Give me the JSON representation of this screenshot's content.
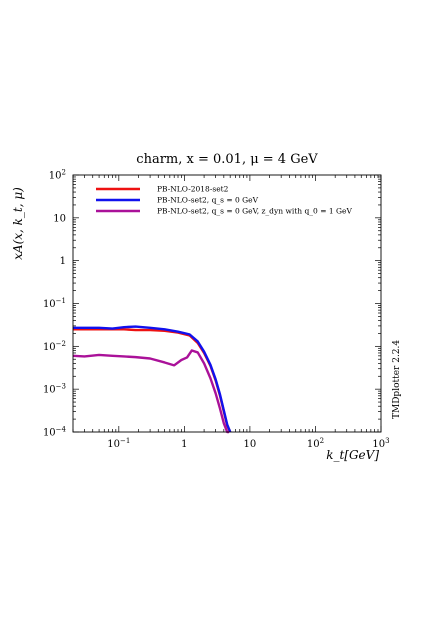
{
  "chart_data": {
    "type": "line",
    "title": "charm, x = 0.01, μ = 4 GeV",
    "xlabel": "k_t[GeV]",
    "ylabel": "xA(x, k_t, μ)",
    "xscale": "log",
    "yscale": "log",
    "xlim": [
      0.02,
      1000
    ],
    "ylim": [
      0.0001,
      100
    ],
    "x_tick_labels": [
      {
        "value": 0.1,
        "base": "10",
        "exp": "−1"
      },
      {
        "value": 1,
        "base": "1",
        "exp": ""
      },
      {
        "value": 10,
        "base": "10",
        "exp": ""
      },
      {
        "value": 100,
        "base": "10",
        "exp": "2"
      },
      {
        "value": 1000,
        "base": "10",
        "exp": "3"
      }
    ],
    "y_tick_labels": [
      {
        "value": 0.0001,
        "base": "10",
        "exp": "−4"
      },
      {
        "value": 0.001,
        "base": "10",
        "exp": "−3"
      },
      {
        "value": 0.01,
        "base": "10",
        "exp": "−2"
      },
      {
        "value": 0.1,
        "base": "10",
        "exp": "−1"
      },
      {
        "value": 1,
        "base": "1",
        "exp": ""
      },
      {
        "value": 10,
        "base": "10",
        "exp": ""
      },
      {
        "value": 100,
        "base": "10",
        "exp": "2"
      }
    ],
    "legend_position": "top-left",
    "grid": false,
    "series": [
      {
        "name": "PB-NLO-2018-set2",
        "color": "#ee1111",
        "x": [
          0.02,
          0.03,
          0.05,
          0.08,
          0.12,
          0.18,
          0.3,
          0.5,
          0.8,
          1.2,
          1.6,
          2.0,
          2.5,
          3.0,
          3.5,
          4.0,
          4.5,
          5.0
        ],
        "y": [
          0.025,
          0.025,
          0.025,
          0.025,
          0.025,
          0.024,
          0.024,
          0.023,
          0.021,
          0.018,
          0.012,
          0.007,
          0.0035,
          0.0016,
          0.0007,
          0.0003,
          0.00014,
          0.0001
        ]
      },
      {
        "name": "PB-NLO-set2, q_s = 0 GeV",
        "color": "#1111ee",
        "x": [
          0.02,
          0.03,
          0.05,
          0.08,
          0.12,
          0.18,
          0.3,
          0.5,
          0.8,
          1.2,
          1.6,
          2.0,
          2.5,
          3.0,
          3.5,
          4.0,
          4.5,
          5.0
        ],
        "y": [
          0.027,
          0.027,
          0.027,
          0.026,
          0.028,
          0.029,
          0.027,
          0.025,
          0.022,
          0.019,
          0.013,
          0.0075,
          0.0037,
          0.0017,
          0.00075,
          0.00032,
          0.00015,
          0.0001
        ]
      },
      {
        "name": "PB-NLO-set2, q_s = 0 GeV, z_dyn with q_0 = 1 GeV",
        "color": "#aa1199",
        "x": [
          0.02,
          0.03,
          0.05,
          0.08,
          0.12,
          0.18,
          0.3,
          0.5,
          0.7,
          0.9,
          1.1,
          1.3,
          1.6,
          2.0,
          2.5,
          3.0,
          3.5,
          4.0,
          4.5,
          4.8
        ],
        "y": [
          0.006,
          0.0058,
          0.0063,
          0.006,
          0.0058,
          0.0056,
          0.0052,
          0.0042,
          0.0036,
          0.0048,
          0.0055,
          0.008,
          0.0072,
          0.004,
          0.0018,
          0.0008,
          0.00035,
          0.00016,
          0.0001,
          0.0001
        ]
      }
    ]
  },
  "legend": [
    {
      "text": "PB-NLO-2018-set2"
    },
    {
      "text": "PB-NLO-set2, q_s = 0 GeV"
    },
    {
      "text": "PB-NLO-set2, q_s = 0 GeV, z_dyn with q_0 = 1 GeV"
    }
  ],
  "side_label": "TMDplotter 2.2.4"
}
